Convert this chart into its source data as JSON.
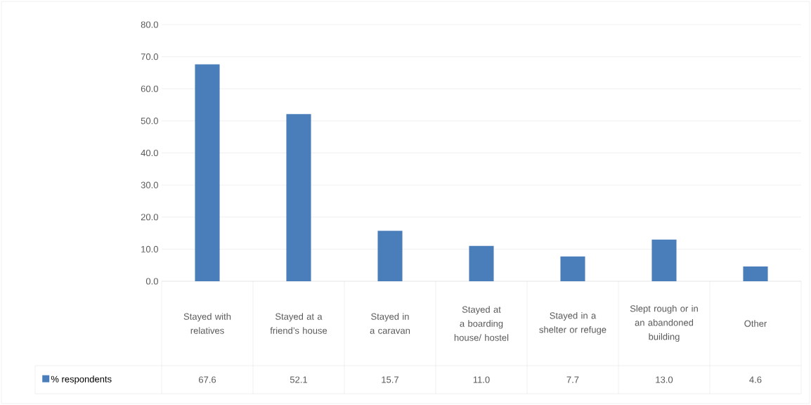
{
  "chart_data": {
    "type": "bar",
    "categories": [
      "Stayed with relatives",
      "Stayed at a friend’s house",
      "Stayed in a caravan",
      "Stayed at a boarding house/ hostel",
      "Stayed in a shelter or refuge",
      "Slept rough or in an abandoned building",
      "Other"
    ],
    "series": [
      {
        "name": "% respondents",
        "color": "#4a7ebb",
        "values": [
          67.6,
          52.1,
          15.7,
          11.0,
          7.7,
          13.0,
          4.6
        ],
        "value_labels": [
          "67.6",
          "52.1",
          "15.7",
          "11.0",
          "7.7",
          "13.0",
          "4.6"
        ]
      }
    ],
    "ylim": [
      0,
      80
    ],
    "yticks": [
      {
        "value": 0,
        "label": "0.0"
      },
      {
        "value": 10,
        "label": "10.0"
      },
      {
        "value": 20,
        "label": "20.0"
      },
      {
        "value": 30,
        "label": "30.0"
      },
      {
        "value": 40,
        "label": "40.0"
      },
      {
        "value": 50,
        "label": "50.0"
      },
      {
        "value": 60,
        "label": "60.0"
      },
      {
        "value": 70,
        "label": "70.0"
      },
      {
        "value": 80,
        "label": "80.0"
      }
    ],
    "grid": "y",
    "legend": "bottom"
  }
}
